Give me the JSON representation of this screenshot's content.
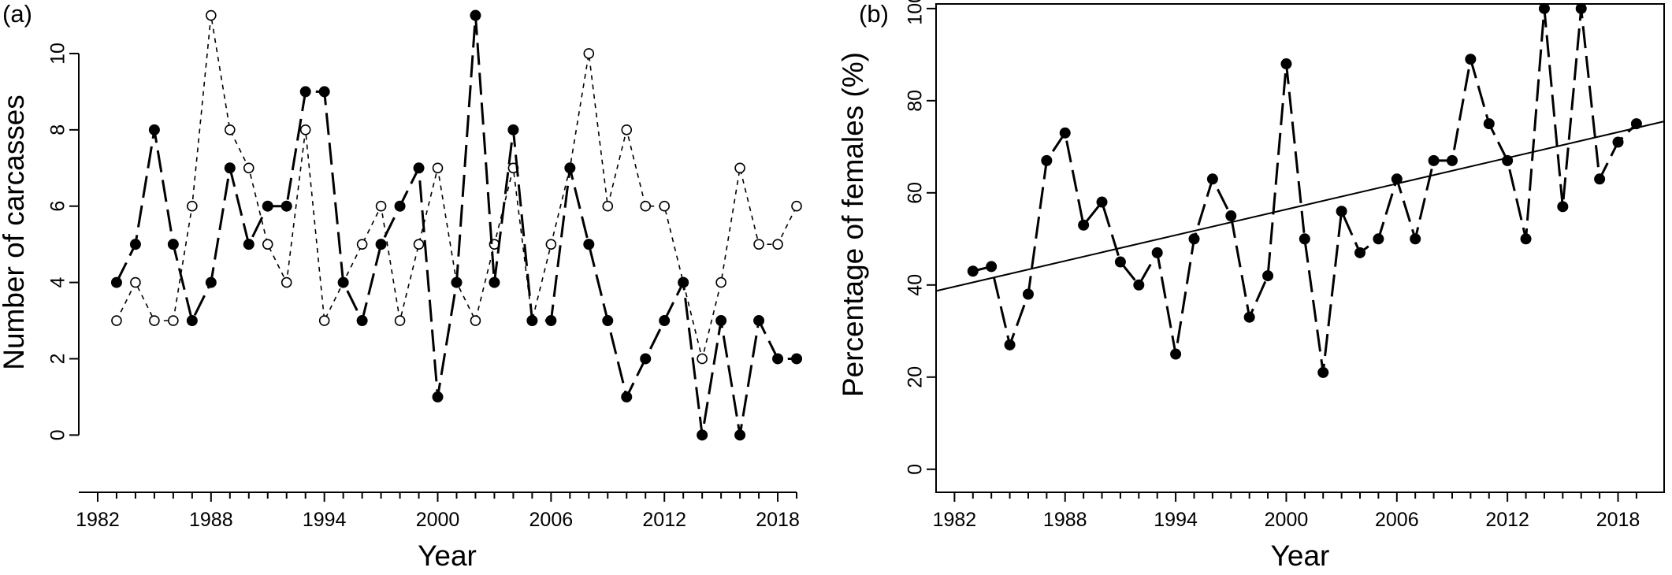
{
  "chart_data": [
    {
      "panel": "(a)",
      "type": "line",
      "xlabel": "Year",
      "ylabel": "Number of carcasses",
      "xlim": [
        1981,
        2020
      ],
      "ylim": [
        -1.5,
        11.3
      ],
      "xticks": [
        1982,
        1988,
        1994,
        2000,
        2006,
        2012,
        2018
      ],
      "yticks": [
        0,
        2,
        4,
        6,
        8,
        10
      ],
      "x": [
        1983,
        1984,
        1985,
        1986,
        1987,
        1988,
        1989,
        1990,
        1991,
        1992,
        1993,
        1994,
        1995,
        1996,
        1997,
        1998,
        1999,
        2000,
        2001,
        2002,
        2003,
        2004,
        2005,
        2006,
        2007,
        2008,
        2009,
        2010,
        2011,
        2012,
        2013,
        2014,
        2015,
        2016,
        2017,
        2018,
        2019
      ],
      "series": [
        {
          "name": "filled",
          "marker": "filled-circle",
          "linestyle": "long-dash",
          "values": [
            4,
            5,
            8,
            5,
            3,
            4,
            7,
            5,
            6,
            6,
            9,
            9,
            4,
            3,
            5,
            6,
            7,
            1,
            4,
            11,
            4,
            8,
            3,
            3,
            7,
            5,
            3,
            1,
            2,
            3,
            4,
            0,
            3,
            0,
            3,
            2,
            2
          ]
        },
        {
          "name": "open",
          "marker": "open-circle",
          "linestyle": "short-dash",
          "values": [
            3,
            4,
            3,
            3,
            6,
            11,
            8,
            7,
            5,
            4,
            8,
            3,
            4,
            5,
            6,
            3,
            5,
            7,
            4,
            3,
            5,
            7,
            3,
            5,
            7,
            10,
            6,
            8,
            6,
            6,
            4,
            2,
            4,
            7,
            5,
            5,
            6
          ]
        }
      ]
    },
    {
      "panel": "(b)",
      "type": "line",
      "xlabel": "Year",
      "ylabel": "Percentage of females (%)",
      "xlim": [
        1981,
        2020.5
      ],
      "ylim": [
        -5,
        101
      ],
      "xticks": [
        1982,
        1988,
        1994,
        2000,
        2006,
        2012,
        2018
      ],
      "yticks": [
        0,
        20,
        40,
        60,
        80,
        100
      ],
      "x": [
        1983,
        1984,
        1985,
        1986,
        1987,
        1988,
        1989,
        1990,
        1991,
        1992,
        1993,
        1994,
        1995,
        1996,
        1997,
        1998,
        1999,
        2000,
        2001,
        2002,
        2003,
        2004,
        2005,
        2006,
        2007,
        2008,
        2009,
        2010,
        2011,
        2012,
        2013,
        2014,
        2015,
        2016,
        2017,
        2018,
        2019
      ],
      "series": [
        {
          "name": "females",
          "marker": "filled-circle",
          "linestyle": "long-dash",
          "values": [
            43,
            44,
            27,
            38,
            67,
            73,
            53,
            58,
            45,
            40,
            47,
            25,
            50,
            63,
            55,
            33,
            42,
            88,
            50,
            21,
            56,
            47,
            50,
            63,
            50,
            67,
            67,
            89,
            75,
            67,
            50,
            100,
            57,
            100,
            63,
            71,
            75
          ]
        }
      ],
      "trendline": {
        "x": [
          1981,
          2020.5
        ],
        "y": [
          38.7,
          75.5
        ]
      }
    }
  ]
}
